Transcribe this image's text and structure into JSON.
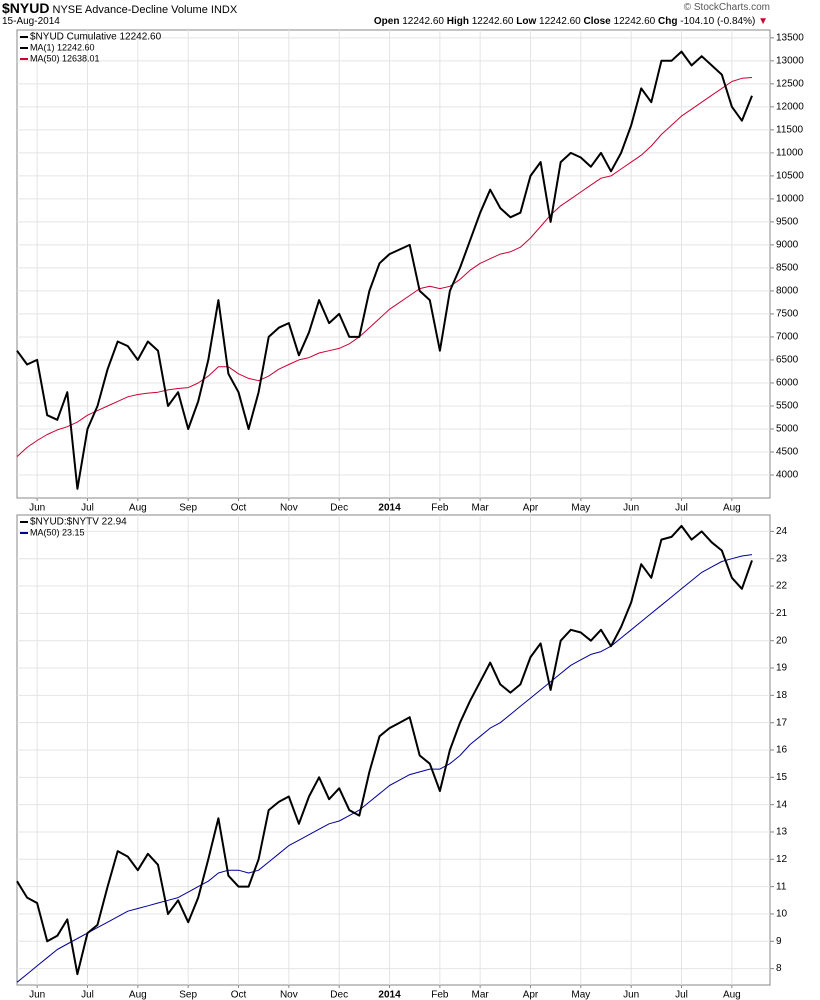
{
  "header": {
    "symbol": "$NYUD",
    "name": "NYSE Advance-Decline Volume INDX",
    "date": "15-Aug-2014",
    "open_label": "Open",
    "open": "12242.60",
    "high_label": "High",
    "high": "12242.60",
    "low_label": "Low",
    "low": "12242.60",
    "close_label": "Close",
    "close": "12242.60",
    "chg_label": "Chg",
    "chg": "-104.10 (-0.84%)",
    "source": "© StockCharts.com"
  },
  "chart_data": [
    {
      "type": "line",
      "categories": [
        null,
        null,
        "Jun",
        null,
        null,
        null,
        null,
        "Jul",
        null,
        null,
        null,
        null,
        "Aug",
        null,
        null,
        null,
        null,
        "Sep",
        null,
        null,
        null,
        null,
        "Oct",
        null,
        null,
        null,
        null,
        "Nov",
        null,
        null,
        null,
        null,
        "Dec",
        null,
        null,
        null,
        null,
        "2014",
        null,
        null,
        null,
        null,
        "Feb",
        null,
        null,
        null,
        "Mar",
        null,
        null,
        null,
        null,
        "Apr",
        null,
        null,
        null,
        null,
        "May",
        null,
        null,
        null,
        null,
        "Jun",
        null,
        null,
        null,
        null,
        "Jul",
        null,
        null,
        null,
        null,
        "Aug",
        null,
        null
      ],
      "series": [
        {
          "name": "$NYUD Cumulative 12242.60",
          "color": "#000000",
          "width": 2,
          "values": [
            6700,
            6400,
            6500,
            5300,
            5200,
            5800,
            3700,
            5000,
            5500,
            6300,
            6900,
            6800,
            6500,
            6900,
            6700,
            5500,
            5800,
            5000,
            5600,
            6500,
            7800,
            6200,
            5800,
            5000,
            5800,
            7000,
            7200,
            7300,
            6600,
            7100,
            7800,
            7300,
            7500,
            7000,
            7000,
            8000,
            8600,
            8800,
            8900,
            9000,
            8000,
            7800,
            6700,
            8000,
            8500,
            9100,
            9700,
            10200,
            9800,
            9600,
            9700,
            10500,
            10800,
            9500,
            10800,
            11000,
            10900,
            10700,
            11000,
            10600,
            11000,
            11600,
            12400,
            12100,
            13000,
            13000,
            13200,
            12900,
            13100,
            12900,
            12700,
            12000,
            11700,
            12242.6
          ]
        },
        {
          "name": "MA(50) 12638.01",
          "color": "#cc0033",
          "width": 1,
          "values": [
            4400,
            4600,
            4750,
            4880,
            4980,
            5050,
            5150,
            5300,
            5400,
            5500,
            5600,
            5700,
            5750,
            5780,
            5800,
            5850,
            5880,
            5900,
            6000,
            6150,
            6350,
            6350,
            6200,
            6100,
            6050,
            6150,
            6300,
            6400,
            6500,
            6550,
            6650,
            6700,
            6750,
            6850,
            7000,
            7200,
            7400,
            7600,
            7750,
            7900,
            8050,
            8100,
            8050,
            8100,
            8250,
            8450,
            8600,
            8700,
            8800,
            8850,
            8950,
            9150,
            9400,
            9650,
            9850,
            10000,
            10150,
            10300,
            10450,
            10500,
            10650,
            10800,
            10950,
            11150,
            11400,
            11600,
            11800,
            11950,
            12100,
            12250,
            12400,
            12550,
            12620,
            12638.01
          ]
        }
      ],
      "annotations": [
        "MA(1) 12242.60"
      ],
      "ylim": [
        3500,
        13670
      ],
      "yticks": [
        4000,
        4500,
        5000,
        5500,
        6000,
        6500,
        7000,
        7500,
        8000,
        8500,
        9000,
        9500,
        10000,
        10500,
        11000,
        11500,
        12000,
        12500,
        13000,
        13500
      ],
      "grid": true
    },
    {
      "type": "line",
      "categories": [
        null,
        null,
        "Jun",
        null,
        null,
        null,
        null,
        "Jul",
        null,
        null,
        null,
        null,
        "Aug",
        null,
        null,
        null,
        null,
        "Sep",
        null,
        null,
        null,
        null,
        "Oct",
        null,
        null,
        null,
        null,
        "Nov",
        null,
        null,
        null,
        null,
        "Dec",
        null,
        null,
        null,
        null,
        "2014",
        null,
        null,
        null,
        null,
        "Feb",
        null,
        null,
        null,
        "Mar",
        null,
        null,
        null,
        null,
        "Apr",
        null,
        null,
        null,
        null,
        "May",
        null,
        null,
        null,
        null,
        "Jun",
        null,
        null,
        null,
        null,
        "Jul",
        null,
        null,
        null,
        null,
        "Aug",
        null,
        null
      ],
      "series": [
        {
          "name": "$NYUD:$NYTV 22.94",
          "color": "#000000",
          "width": 2,
          "values": [
            11.2,
            10.6,
            10.4,
            9.0,
            9.2,
            9.8,
            7.8,
            9.3,
            9.6,
            11.0,
            12.3,
            12.1,
            11.6,
            12.2,
            11.8,
            10.0,
            10.5,
            9.7,
            10.6,
            12.0,
            13.5,
            11.4,
            11.0,
            11.0,
            12.0,
            13.8,
            14.1,
            14.3,
            13.3,
            14.3,
            15.0,
            14.2,
            14.6,
            13.8,
            13.6,
            15.2,
            16.5,
            16.8,
            17.0,
            17.2,
            15.8,
            15.5,
            14.5,
            16.0,
            17.0,
            17.8,
            18.5,
            19.2,
            18.4,
            18.1,
            18.4,
            19.4,
            19.9,
            18.2,
            20.0,
            20.4,
            20.3,
            20.0,
            20.4,
            19.8,
            20.5,
            21.4,
            22.8,
            22.3,
            23.7,
            23.8,
            24.2,
            23.7,
            24.0,
            23.6,
            23.3,
            22.3,
            21.9,
            22.94
          ]
        },
        {
          "name": "MA(50) 23.15",
          "color": "#000099",
          "width": 1,
          "values": [
            7.5,
            7.8,
            8.1,
            8.4,
            8.7,
            8.9,
            9.1,
            9.3,
            9.5,
            9.7,
            9.9,
            10.1,
            10.2,
            10.3,
            10.4,
            10.5,
            10.6,
            10.8,
            11.0,
            11.2,
            11.5,
            11.6,
            11.6,
            11.5,
            11.6,
            11.9,
            12.2,
            12.5,
            12.7,
            12.9,
            13.1,
            13.3,
            13.4,
            13.6,
            13.8,
            14.1,
            14.4,
            14.7,
            14.9,
            15.1,
            15.2,
            15.3,
            15.3,
            15.5,
            15.8,
            16.2,
            16.5,
            16.8,
            17.0,
            17.3,
            17.6,
            17.9,
            18.2,
            18.5,
            18.8,
            19.1,
            19.3,
            19.5,
            19.6,
            19.8,
            20.1,
            20.4,
            20.7,
            21.0,
            21.3,
            21.6,
            21.9,
            22.2,
            22.5,
            22.7,
            22.9,
            23.0,
            23.1,
            23.15
          ]
        }
      ],
      "ylim": [
        7.4,
        24.6
      ],
      "yticks": [
        8,
        9,
        10,
        11,
        12,
        13,
        14,
        15,
        16,
        17,
        18,
        19,
        20,
        21,
        22,
        23,
        24
      ],
      "grid": true
    }
  ]
}
